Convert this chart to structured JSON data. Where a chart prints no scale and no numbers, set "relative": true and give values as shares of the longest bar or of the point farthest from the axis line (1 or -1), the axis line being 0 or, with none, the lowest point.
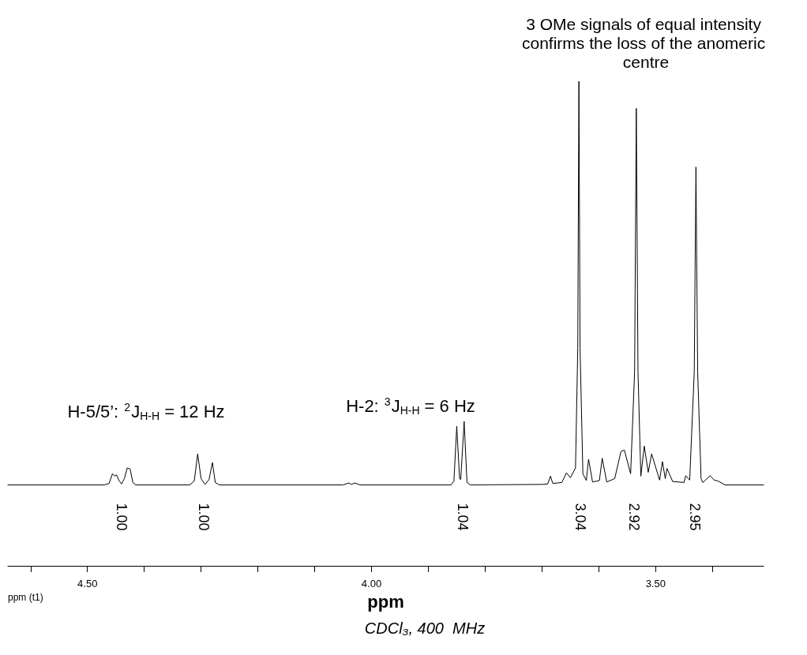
{
  "chart_data": {
    "type": "line",
    "relative": true,
    "xlabel": "ppm",
    "xlim": [
      4.64,
      3.31
    ],
    "xticks": [
      {
        "value": 4.6,
        "label": null
      },
      {
        "value": 4.5,
        "label": "4.50"
      },
      {
        "value": 4.4,
        "label": null
      },
      {
        "value": 4.3,
        "label": null
      },
      {
        "value": 4.2,
        "label": null
      },
      {
        "value": 4.1,
        "label": null
      },
      {
        "value": 4.0,
        "label": "4.00"
      },
      {
        "value": 3.9,
        "label": null
      },
      {
        "value": 3.8,
        "label": null
      },
      {
        "value": 3.7,
        "label": null
      },
      {
        "value": 3.6,
        "label": null
      },
      {
        "value": 3.5,
        "label": "3.50"
      },
      {
        "value": 3.4,
        "label": null
      }
    ],
    "grid": false,
    "marker": "none",
    "line_style": "solid",
    "tick_labels": "x",
    "series": [
      {
        "color": "#000000",
        "x": [
          4.64,
          4.47,
          4.462,
          4.456,
          4.452,
          4.449,
          4.444,
          4.44,
          4.435,
          4.43,
          4.425,
          4.42,
          4.415,
          4.32,
          4.312,
          4.306,
          4.3,
          4.293,
          4.286,
          4.28,
          4.275,
          4.268,
          4.05,
          4.04,
          4.035,
          4.03,
          4.02,
          3.86,
          3.855,
          3.85,
          3.845,
          3.843,
          3.837,
          3.832,
          3.826,
          3.7,
          3.69,
          3.685,
          3.681,
          3.665,
          3.657,
          3.65,
          3.641,
          3.637,
          3.635,
          3.633,
          3.628,
          3.622,
          3.618,
          3.611,
          3.599,
          3.594,
          3.586,
          3.572,
          3.561,
          3.555,
          3.544,
          3.537,
          3.534,
          3.531,
          3.526,
          3.52,
          3.513,
          3.507,
          3.493,
          3.488,
          3.483,
          3.48,
          3.47,
          3.45,
          3.447,
          3.44,
          3.432,
          3.429,
          3.426,
          3.42,
          3.417,
          3.404,
          3.397,
          3.39,
          3.378,
          3.31
        ],
        "values": [
          0.167,
          0.167,
          0.17,
          0.19,
          0.185,
          0.188,
          0.175,
          0.169,
          0.18,
          0.202,
          0.2,
          0.172,
          0.167,
          0.167,
          0.175,
          0.231,
          0.18,
          0.168,
          0.178,
          0.213,
          0.172,
          0.167,
          0.167,
          0.171,
          0.168,
          0.171,
          0.167,
          0.167,
          0.175,
          0.288,
          0.18,
          0.178,
          0.298,
          0.172,
          0.167,
          0.168,
          0.169,
          0.185,
          0.17,
          0.172,
          0.192,
          0.182,
          0.202,
          0.45,
          1.0,
          0.45,
          0.19,
          0.176,
          0.22,
          0.173,
          0.176,
          0.222,
          0.173,
          0.18,
          0.236,
          0.239,
          0.19,
          0.4,
          0.944,
          0.4,
          0.185,
          0.247,
          0.193,
          0.231,
          0.177,
          0.215,
          0.18,
          0.201,
          0.174,
          0.172,
          0.186,
          0.177,
          0.4,
          0.823,
          0.4,
          0.18,
          0.172,
          0.186,
          0.177,
          0.175,
          0.167,
          0.167
        ]
      }
    ],
    "annotations": [
      "3 OMe signals of equal intensity confirms the loss of the anomeric centre",
      "H-5/5’: $^{2}$J$_{H-H}$ = 12 Hz",
      "H-2: $^{3}$J$_{H-H}$ = 6 Hz",
      "1.00",
      "1.00",
      "1.04",
      "3.04",
      "2.92",
      "2.95",
      "ppm (t1)",
      "CDCl₃, 400  MHz"
    ]
  }
}
